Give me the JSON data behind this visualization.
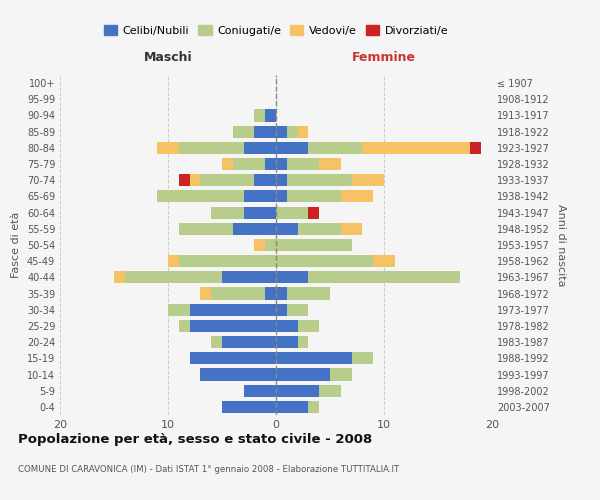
{
  "age_groups": [
    "0-4",
    "5-9",
    "10-14",
    "15-19",
    "20-24",
    "25-29",
    "30-34",
    "35-39",
    "40-44",
    "45-49",
    "50-54",
    "55-59",
    "60-64",
    "65-69",
    "70-74",
    "75-79",
    "80-84",
    "85-89",
    "90-94",
    "95-99",
    "100+"
  ],
  "birth_years": [
    "2003-2007",
    "1998-2002",
    "1993-1997",
    "1988-1992",
    "1983-1987",
    "1978-1982",
    "1973-1977",
    "1968-1972",
    "1963-1967",
    "1958-1962",
    "1953-1957",
    "1948-1952",
    "1943-1947",
    "1938-1942",
    "1933-1937",
    "1928-1932",
    "1923-1927",
    "1918-1922",
    "1913-1917",
    "1908-1912",
    "≤ 1907"
  ],
  "maschi": {
    "celibi": [
      5,
      3,
      7,
      8,
      5,
      8,
      8,
      1,
      5,
      0,
      0,
      4,
      3,
      3,
      2,
      1,
      3,
      2,
      1,
      0,
      0
    ],
    "coniugati": [
      0,
      0,
      0,
      0,
      1,
      1,
      2,
      5,
      9,
      9,
      1,
      5,
      3,
      8,
      5,
      3,
      6,
      2,
      1,
      0,
      0
    ],
    "vedovi": [
      0,
      0,
      0,
      0,
      0,
      0,
      0,
      1,
      1,
      1,
      1,
      0,
      0,
      0,
      1,
      1,
      2,
      0,
      0,
      0,
      0
    ],
    "divorziati": [
      0,
      0,
      0,
      0,
      0,
      0,
      0,
      0,
      0,
      0,
      0,
      0,
      0,
      0,
      1,
      0,
      0,
      0,
      0,
      0,
      0
    ]
  },
  "femmine": {
    "nubili": [
      3,
      4,
      5,
      7,
      2,
      2,
      1,
      1,
      3,
      0,
      0,
      2,
      0,
      1,
      1,
      1,
      3,
      1,
      0,
      0,
      0
    ],
    "coniugate": [
      1,
      2,
      2,
      2,
      1,
      2,
      2,
      4,
      14,
      9,
      7,
      4,
      3,
      5,
      6,
      3,
      5,
      1,
      0,
      0,
      0
    ],
    "vedove": [
      0,
      0,
      0,
      0,
      0,
      0,
      0,
      0,
      0,
      2,
      0,
      2,
      0,
      3,
      3,
      2,
      10,
      1,
      0,
      0,
      0
    ],
    "divorziate": [
      0,
      0,
      0,
      0,
      0,
      0,
      0,
      0,
      0,
      0,
      0,
      0,
      1,
      0,
      0,
      0,
      1,
      0,
      0,
      0,
      0
    ]
  },
  "colors": {
    "celibi_nubili": "#4472c4",
    "coniugati": "#b8cc8c",
    "vedovi": "#f5c265",
    "divorziati": "#cc2222"
  },
  "xlim": 20,
  "title": "Popolazione per età, sesso e stato civile - 2008",
  "subtitle": "COMUNE DI CARAVONICA (IM) - Dati ISTAT 1° gennaio 2008 - Elaborazione TUTTITALIA.IT",
  "ylabel_left": "Fasce di età",
  "ylabel_right": "Anni di nascita",
  "xlabel_left": "Maschi",
  "xlabel_right": "Femmine",
  "legend_labels": [
    "Celibi/Nubili",
    "Coniugati/e",
    "Vedovi/e",
    "Divorziati/e"
  ],
  "background_color": "#f5f5f5",
  "grid_color": "#cccccc"
}
